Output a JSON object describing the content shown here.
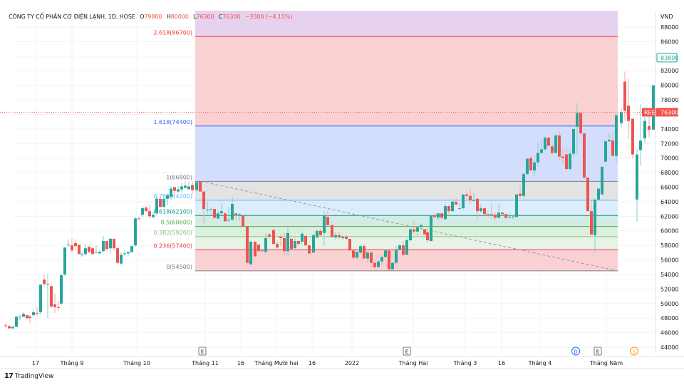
{
  "header": {
    "symbol_title": "CÔNG TY CỔ PHẦN CƠ ĐIỆN LẠNH, 1D, HOSE",
    "open_label": "O",
    "open": "79800",
    "high_label": "H",
    "high": "80000",
    "low_label": "L",
    "low": "76300",
    "close_label": "C",
    "close": "76300",
    "change": "−3300 (−4.15%)"
  },
  "price_axis": {
    "currency": "VND",
    "ticks": [
      "88000",
      "86000",
      "82000",
      "80000",
      "78000",
      "74000",
      "72000",
      "70000",
      "68000",
      "66000",
      "64000",
      "62000",
      "60000",
      "58000",
      "56000",
      "54000",
      "52000",
      "50000",
      "48000",
      "46000",
      "44000"
    ],
    "highlight_high": "83800",
    "last_price": "76300",
    "symbol_badge": "REE"
  },
  "time_axis": {
    "labels": [
      {
        "text": "17",
        "x": 50
      },
      {
        "text": "Tháng 9",
        "x": 101
      },
      {
        "text": "Tháng 10",
        "x": 192
      },
      {
        "text": "Tháng 11",
        "x": 288
      },
      {
        "text": "16",
        "x": 338
      },
      {
        "text": "Tháng Mười hai",
        "x": 388
      },
      {
        "text": "16",
        "x": 438
      },
      {
        "text": "2022",
        "x": 494
      },
      {
        "text": "Tháng Hai",
        "x": 580
      },
      {
        "text": "Tháng 3",
        "x": 653
      },
      {
        "text": "16",
        "x": 704
      },
      {
        "text": "Tháng 4",
        "x": 758
      },
      {
        "text": "Tháng Năm",
        "x": 851
      }
    ],
    "events": [
      {
        "type": "E",
        "x": 284
      },
      {
        "type": "E",
        "x": 571
      },
      {
        "type": "D",
        "x": 808
      },
      {
        "type": "E",
        "x": 839
      },
      {
        "type": "S",
        "x": 890
      }
    ]
  },
  "fibonacci": {
    "levels": [
      {
        "ratio": "2.618",
        "price": 86700,
        "label": "2.618(86700)",
        "color": "#f23645"
      },
      {
        "ratio": "1.618",
        "price": 74400,
        "label": "1.618(74400)",
        "color": "#2962ff"
      },
      {
        "ratio": "1",
        "price": 66800,
        "label": "1(66800)",
        "color": "#787b86"
      },
      {
        "ratio": "0.786",
        "price": 64200,
        "label": "0.786(64200)",
        "color": "#64b5f6"
      },
      {
        "ratio": "0.618",
        "price": 62100,
        "label": "0.618(62100)",
        "color": "#089981"
      },
      {
        "ratio": "0.5",
        "price": 60600,
        "label": "0.5(60600)",
        "color": "#4caf50"
      },
      {
        "ratio": "0.382",
        "price": 59200,
        "label": "0.382(59200)",
        "color": "#81c784"
      },
      {
        "ratio": "0.236",
        "price": 57400,
        "label": "0.236(57400)",
        "color": "#f23645"
      },
      {
        "ratio": "0",
        "price": 54500,
        "label": "0(54500)",
        "color": "#787b86"
      }
    ]
  },
  "colors": {
    "up": "#26a69a",
    "down": "#ef5350",
    "grid": "#f0f3fa"
  },
  "footer": {
    "brand": "TradingView"
  },
  "chart_data": {
    "type": "candlestick",
    "title": "CÔNG TY CỔ PHẦN CƠ ĐIỆN LẠNH, 1D, HOSE",
    "ylabel": "VND",
    "ylim": [
      43000,
      90000
    ],
    "x_tick_labels": [
      "17",
      "Tháng 9",
      "Tháng 10",
      "Tháng 11",
      "16",
      "Tháng Mười hai",
      "16",
      "2022",
      "Tháng Hai",
      "Tháng 3",
      "16",
      "Tháng 4",
      "Tháng Năm"
    ],
    "last": {
      "open": 79800,
      "high": 80000,
      "low": 76300,
      "close": 76300,
      "change": -3300,
      "change_pct": -4.15
    },
    "fib_retracement": {
      "from": 66800,
      "to": 54500,
      "levels": {
        "0": 54500,
        "0.236": 57400,
        "0.382": 59200,
        "0.5": 60600,
        "0.618": 62100,
        "0.786": 64200,
        "1": 66800,
        "1.618": 74400,
        "2.618": 86700
      }
    },
    "candles": [
      [
        8,
        47000,
        47400,
        46700,
        46900
      ],
      [
        13,
        46900,
        47100,
        46500,
        46600
      ],
      [
        18,
        46600,
        47000,
        46400,
        46800
      ],
      [
        23,
        46800,
        48300,
        46800,
        48200
      ],
      [
        28,
        48200,
        48500,
        47700,
        48200
      ],
      [
        33,
        48200,
        48900,
        48100,
        48600
      ],
      [
        38,
        48400,
        48500,
        47700,
        48000
      ],
      [
        42,
        48200,
        48400,
        47300,
        48000
      ],
      [
        47,
        48400,
        49200,
        48200,
        48800
      ],
      [
        52,
        48700,
        49500,
        48300,
        48600
      ],
      [
        57,
        48800,
        52700,
        48500,
        52600
      ],
      [
        62,
        53300,
        54000,
        52300,
        52700
      ],
      [
        67,
        52600,
        54100,
        48000,
        52700
      ],
      [
        72,
        52400,
        52600,
        49400,
        49600
      ],
      [
        77,
        49900,
        51400,
        48700,
        49500
      ],
      [
        82,
        49500,
        50400,
        49000,
        49400
      ],
      [
        86,
        50000,
        54000,
        49800,
        53900
      ],
      [
        91,
        54000,
        57800,
        53800,
        57700
      ],
      [
        96,
        58000,
        58800,
        57800,
        58100
      ],
      [
        101,
        58000,
        59000,
        56900,
        57300
      ],
      [
        106,
        58300,
        58800,
        57400,
        57900
      ],
      [
        111,
        58100,
        58100,
        56800,
        56800
      ],
      [
        115,
        56700,
        57100,
        56400,
        56800
      ],
      [
        120,
        56800,
        58200,
        56600,
        57600
      ],
      [
        125,
        57800,
        58000,
        56900,
        57100
      ],
      [
        130,
        57600,
        57800,
        56800,
        56800
      ],
      [
        135,
        57000,
        58000,
        56900,
        57100
      ],
      [
        140,
        56900,
        57400,
        56800,
        57100
      ],
      [
        145,
        57200,
        59300,
        57100,
        58600
      ],
      [
        150,
        58600,
        58400,
        57200,
        57500
      ],
      [
        155,
        57600,
        59000,
        56900,
        58900
      ],
      [
        160,
        58900,
        58700,
        57300,
        57600
      ],
      [
        165,
        57600,
        57600,
        55400,
        55600
      ],
      [
        170,
        55500,
        57000,
        55300,
        56700
      ],
      [
        175,
        56800,
        57300,
        56600,
        56900
      ],
      [
        180,
        56900,
        57100,
        56500,
        57100
      ],
      [
        185,
        57100,
        58100,
        56900,
        57900
      ],
      [
        190,
        58000,
        61900,
        57800,
        61700
      ],
      [
        195,
        61700,
        61900,
        61400,
        61600
      ],
      [
        200,
        62200,
        63400,
        61900,
        63100
      ],
      [
        205,
        63200,
        63400,
        62600,
        62700
      ],
      [
        210,
        62700,
        63500,
        61700,
        62000
      ],
      [
        215,
        61900,
        62600,
        61700,
        62200
      ],
      [
        220,
        62400,
        64700,
        62100,
        64400
      ],
      [
        225,
        64400,
        64500,
        63100,
        63300
      ],
      [
        230,
        63300,
        64500,
        63100,
        64400
      ],
      [
        235,
        64400,
        65100,
        63500,
        64900
      ],
      [
        240,
        64700,
        66100,
        64300,
        65800
      ],
      [
        245,
        66000,
        65900,
        64900,
        65500
      ],
      [
        250,
        65400,
        66200,
        65200,
        65700
      ],
      [
        255,
        65700,
        66600,
        65200,
        66100
      ],
      [
        260,
        65900,
        66800,
        65800,
        66200
      ],
      [
        265,
        65700,
        66800,
        65800,
        66100
      ],
      [
        270,
        66300,
        66800,
        65000,
        65600
      ],
      [
        276,
        65600,
        66800,
        65400,
        66700
      ],
      [
        281,
        66800,
        66900,
        65500,
        65400
      ],
      [
        286,
        65400,
        64700,
        61000,
        63000
      ],
      [
        291,
        62800,
        64000,
        62300,
        62900
      ],
      [
        296,
        62900,
        63200,
        62300,
        63000
      ],
      [
        301,
        63000,
        62700,
        61700,
        61800
      ],
      [
        306,
        61700,
        62800,
        61600,
        62400
      ],
      [
        311,
        62400,
        63800,
        62200,
        62700
      ],
      [
        316,
        62400,
        62600,
        61400,
        61300
      ],
      [
        321,
        61400,
        63300,
        61300,
        61500
      ],
      [
        326,
        61500,
        64700,
        61600,
        63700
      ],
      [
        331,
        62400,
        62400,
        61400,
        62200
      ],
      [
        336,
        62300,
        62400,
        61400,
        62300
      ],
      [
        341,
        62100,
        62100,
        60500,
        60600
      ],
      [
        347,
        60600,
        59800,
        55400,
        55600
      ],
      [
        352,
        55400,
        58600,
        55600,
        58500
      ],
      [
        358,
        58500,
        58000,
        56400,
        56500
      ],
      [
        363,
        58100,
        58100,
        57200,
        57200
      ],
      [
        368,
        57200,
        57400,
        57100,
        57300
      ],
      [
        373,
        57100,
        59700,
        57000,
        59000
      ],
      [
        378,
        59500,
        59800,
        58900,
        59200
      ],
      [
        384,
        60100,
        60400,
        58200,
        58200
      ],
      [
        389,
        58200,
        58600,
        57200,
        57700
      ],
      [
        394,
        59200,
        59400,
        57900,
        59000
      ],
      [
        399,
        59000,
        59700,
        56600,
        57200
      ],
      [
        404,
        57200,
        60700,
        56500,
        59700
      ],
      [
        409,
        58900,
        59300,
        57400,
        57500
      ],
      [
        414,
        57600,
        59000,
        58000,
        58600
      ],
      [
        419,
        58600,
        58700,
        57800,
        58200
      ],
      [
        424,
        58500,
        59900,
        58100,
        59600
      ],
      [
        429,
        59300,
        59300,
        58000,
        58000
      ],
      [
        434,
        58000,
        58100,
        56800,
        56900
      ],
      [
        440,
        57000,
        59600,
        57000,
        59400
      ],
      [
        445,
        59100,
        60100,
        58900,
        60000
      ],
      [
        450,
        60000,
        60300,
        59300,
        59400
      ],
      [
        455,
        59700,
        62700,
        58000,
        62100
      ],
      [
        460,
        61900,
        62800,
        60600,
        60800
      ],
      [
        466,
        60800,
        60800,
        59300,
        59100
      ]
    ]
  }
}
